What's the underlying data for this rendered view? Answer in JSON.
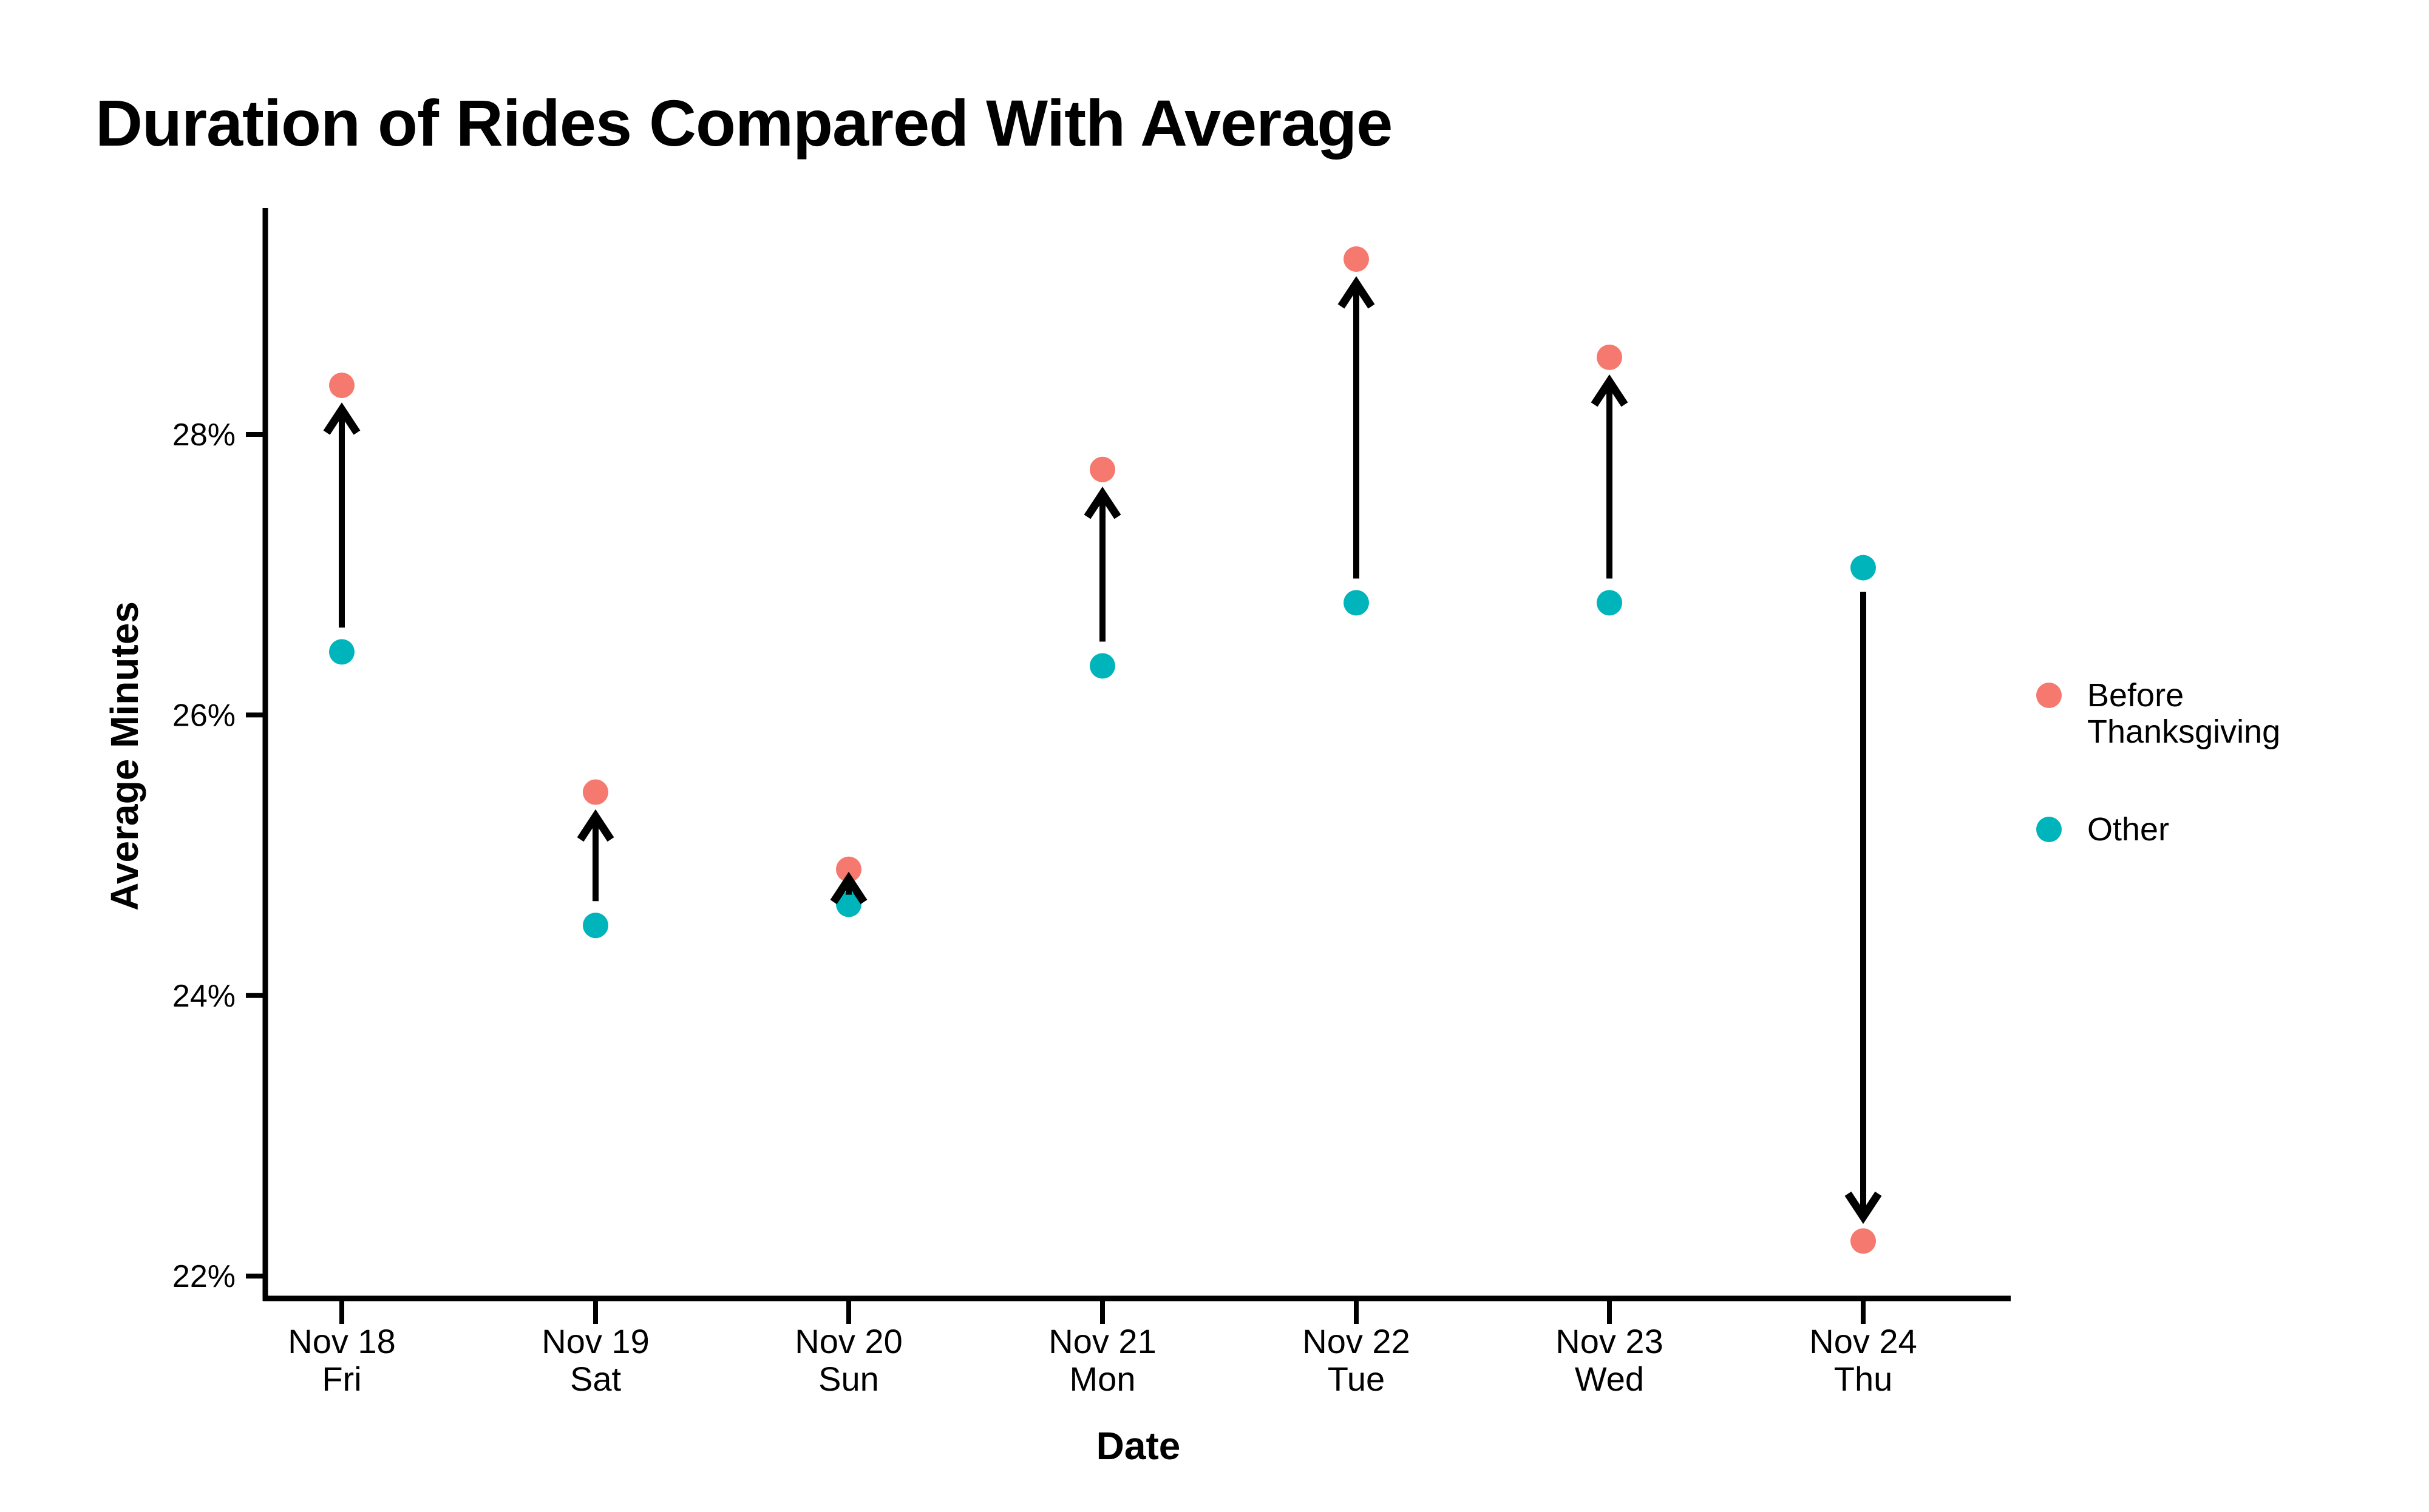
{
  "title": "Duration of Rides Compared With Average",
  "axes": {
    "y_label": "Average Minutes",
    "x_label": "Date",
    "y_ticks": [
      {
        "label": "28%",
        "value": 28
      },
      {
        "label": "26%",
        "value": 26
      },
      {
        "label": "24%",
        "value": 24
      },
      {
        "label": "22%",
        "value": 22
      }
    ]
  },
  "legend": {
    "items": [
      {
        "label": "Before Thanksgiving",
        "series": "before",
        "color": "#f5796e"
      },
      {
        "label": "Other",
        "series": "other",
        "color": "#00b4bb"
      }
    ]
  },
  "colors": {
    "before": "#f5796e",
    "other": "#00b4bb",
    "arrow": "#000000",
    "axis": "#000000"
  },
  "chart_data": {
    "type": "scatter",
    "title": "Duration of Rides Compared With Average",
    "xlabel": "Date",
    "ylabel": "Average Minutes",
    "ylim": [
      21.8,
      29.7
    ],
    "y_tick_values": [
      28,
      26,
      24,
      22
    ],
    "grid": false,
    "legend_position": "right",
    "categories": [
      {
        "date": "Nov 18",
        "day": "Fri"
      },
      {
        "date": "Nov 19",
        "day": "Sat"
      },
      {
        "date": "Nov 20",
        "day": "Sun"
      },
      {
        "date": "Nov 21",
        "day": "Mon"
      },
      {
        "date": "Nov 22",
        "day": "Tue"
      },
      {
        "date": "Nov 23",
        "day": "Wed"
      },
      {
        "date": "Nov 24",
        "day": "Thu"
      }
    ],
    "series": [
      {
        "name": "Before Thanksgiving",
        "color": "#f5796e",
        "values": [
          28.35,
          25.45,
          24.9,
          27.75,
          29.25,
          28.55,
          22.25
        ]
      },
      {
        "name": "Other",
        "color": "#00b4bb",
        "values": [
          26.45,
          24.5,
          24.65,
          26.35,
          26.8,
          26.8,
          27.05
        ]
      }
    ],
    "annotations": {
      "arrows": "vertical black arrow at each date pointing from the Other value to the Before Thanksgiving value"
    }
  }
}
